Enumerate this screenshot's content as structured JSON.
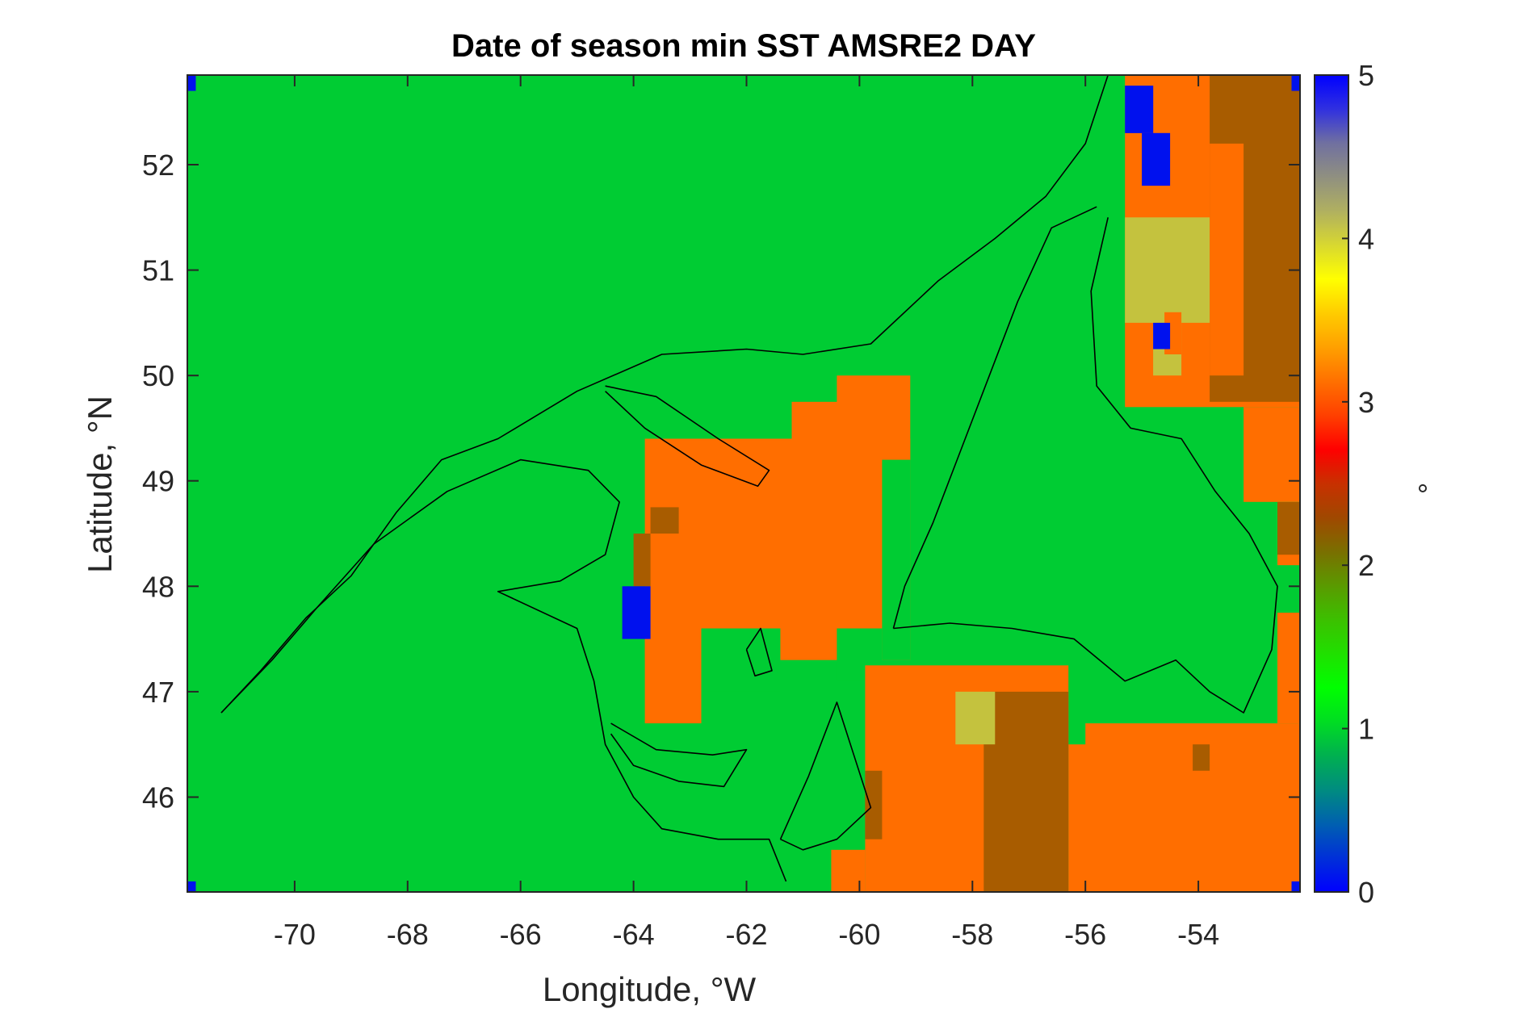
{
  "chart_data": {
    "type": "heatmap",
    "title": "Date of season min SST AMSRE2 DAY",
    "xlabel": "Longitude, °W",
    "ylabel": "Latitude, °N",
    "colorbar_label": "°",
    "xlim": [
      -71.9,
      -52.2
    ],
    "ylim": [
      45.1,
      52.85
    ],
    "xticks": [
      -70,
      -68,
      -66,
      -64,
      -62,
      -60,
      -58,
      -56,
      -54
    ],
    "xtick_labels": [
      "-70",
      "-68",
      "-66",
      "-64",
      "-62",
      "-60",
      "-58",
      "-56",
      "-54"
    ],
    "yticks": [
      46,
      47,
      48,
      49,
      50,
      51,
      52
    ],
    "ytick_labels": [
      "46",
      "47",
      "48",
      "49",
      "50",
      "51",
      "52"
    ],
    "clim": [
      0,
      5
    ],
    "colorbar_ticks": [
      0,
      1,
      2,
      3,
      4,
      5
    ],
    "colorbar_tick_labels": [
      "0",
      "1",
      "2",
      "3",
      "4",
      "5"
    ],
    "background_value": 1,
    "value_colors": {
      "0": "#0011ee",
      "1": "#00cc33",
      "2": "#a85c00",
      "3": "#ff6e00",
      "4": "#c4c23e"
    },
    "colormap": [
      "#0000ff",
      "#0030d8",
      "#0060b0",
      "#008c80",
      "#00b050",
      "#00dd22",
      "#00ff00",
      "#20e000",
      "#3cc000",
      "#5a9a00",
      "#7a6f00",
      "#a04800",
      "#c83000",
      "#ff0000",
      "#ff4000",
      "#ff7000",
      "#ffa000",
      "#ffcc00",
      "#ffff00",
      "#d8d830",
      "#b0b060",
      "#909080",
      "#7070a0",
      "#3030e0",
      "#0000ff"
    ],
    "regions": [
      {
        "value": 3,
        "lon": [
          -63.8,
          -59.1
        ],
        "lat": [
          47.3,
          49.4
        ]
      },
      {
        "value": 3,
        "lon": [
          -60.4,
          -59.1
        ],
        "lat": [
          49.4,
          50.0
        ]
      },
      {
        "value": 3,
        "lon": [
          -61.2,
          -60.4
        ],
        "lat": [
          49.0,
          49.75
        ]
      },
      {
        "value": 3,
        "lon": [
          -62.0,
          -61.2
        ],
        "lat": [
          48.8,
          49.35
        ]
      },
      {
        "value": 3,
        "lon": [
          -63.8,
          -62.8
        ],
        "lat": [
          46.7,
          47.5
        ]
      },
      {
        "value": 1,
        "lon": [
          -62.8,
          -61.4
        ],
        "lat": [
          47.0,
          47.6
        ]
      },
      {
        "value": 1,
        "lon": [
          -60.4,
          -59.6
        ],
        "lat": [
          47.1,
          47.6
        ]
      },
      {
        "value": 1,
        "lon": [
          -59.6,
          -59.1
        ],
        "lat": [
          47.3,
          49.2
        ]
      },
      {
        "value": 2,
        "lon": [
          -63.7,
          -63.2
        ],
        "lat": [
          48.5,
          48.75
        ]
      },
      {
        "value": 2,
        "lon": [
          -64.0,
          -63.7
        ],
        "lat": [
          48.0,
          48.5
        ]
      },
      {
        "value": 0,
        "lon": [
          -64.2,
          -63.7
        ],
        "lat": [
          47.5,
          48.0
        ]
      },
      {
        "value": 3,
        "lon": [
          -59.9,
          -56.3
        ],
        "lat": [
          45.1,
          47.25
        ]
      },
      {
        "value": 3,
        "lon": [
          -56.3,
          -52.2
        ],
        "lat": [
          45.1,
          46.5
        ]
      },
      {
        "value": 3,
        "lon": [
          -56.0,
          -52.2
        ],
        "lat": [
          46.4,
          46.7
        ]
      },
      {
        "value": 3,
        "lon": [
          -52.6,
          -52.2
        ],
        "lat": [
          46.7,
          47.75
        ]
      },
      {
        "value": 3,
        "lon": [
          -60.5,
          -59.9
        ],
        "lat": [
          45.1,
          45.5
        ]
      },
      {
        "value": 2,
        "lon": [
          -57.8,
          -56.3
        ],
        "lat": [
          45.1,
          47.0
        ]
      },
      {
        "value": 2,
        "lon": [
          -59.9,
          -59.6
        ],
        "lat": [
          45.6,
          46.25
        ]
      },
      {
        "value": 2,
        "lon": [
          -54.1,
          -53.8
        ],
        "lat": [
          46.25,
          46.5
        ]
      },
      {
        "value": 4,
        "lon": [
          -58.3,
          -57.6
        ],
        "lat": [
          46.5,
          47.0
        ]
      },
      {
        "value": 3,
        "lon": [
          -55.3,
          -52.2
        ],
        "lat": [
          49.7,
          52.85
        ]
      },
      {
        "value": 3,
        "lon": [
          -53.2,
          -52.2
        ],
        "lat": [
          48.8,
          49.7
        ]
      },
      {
        "value": 3,
        "lon": [
          -52.6,
          -52.2
        ],
        "lat": [
          48.2,
          48.8
        ]
      },
      {
        "value": 2,
        "lon": [
          -53.8,
          -52.2
        ],
        "lat": [
          49.75,
          52.85
        ]
      },
      {
        "value": 2,
        "lon": [
          -52.6,
          -52.2
        ],
        "lat": [
          48.3,
          48.8
        ]
      },
      {
        "value": 3,
        "lon": [
          -53.8,
          -53.2
        ],
        "lat": [
          50.0,
          52.2
        ]
      },
      {
        "value": 4,
        "lon": [
          -55.3,
          -53.8
        ],
        "lat": [
          50.5,
          51.5
        ]
      },
      {
        "value": 4,
        "lon": [
          -54.8,
          -54.3
        ],
        "lat": [
          50.0,
          50.5
        ]
      },
      {
        "value": 3,
        "lon": [
          -54.6,
          -54.3
        ],
        "lat": [
          50.2,
          50.6
        ]
      },
      {
        "value": 0,
        "lon": [
          -55.3,
          -54.8
        ],
        "lat": [
          52.3,
          52.75
        ]
      },
      {
        "value": 0,
        "lon": [
          -55.0,
          -54.5
        ],
        "lat": [
          51.8,
          52.3
        ]
      },
      {
        "value": 0,
        "lon": [
          -54.8,
          -54.5
        ],
        "lat": [
          50.25,
          50.5
        ]
      },
      {
        "value": 0,
        "lon": [
          -71.9,
          -71.75
        ],
        "lat": [
          52.7,
          52.85
        ]
      },
      {
        "value": 0,
        "lon": [
          -52.35,
          -52.2
        ],
        "lat": [
          52.7,
          52.85
        ]
      },
      {
        "value": 0,
        "lon": [
          -71.9,
          -71.75
        ],
        "lat": [
          45.1,
          45.2
        ]
      },
      {
        "value": 0,
        "lon": [
          -52.35,
          -52.2
        ],
        "lat": [
          45.1,
          45.2
        ]
      }
    ],
    "coastlines": [
      {
        "name": "north-shore",
        "points": [
          [
            -71.3,
            46.8
          ],
          [
            -70.6,
            47.2
          ],
          [
            -69.8,
            47.7
          ],
          [
            -69.0,
            48.1
          ],
          [
            -68.2,
            48.7
          ],
          [
            -67.4,
            49.2
          ],
          [
            -66.4,
            49.4
          ],
          [
            -65.0,
            49.85
          ],
          [
            -63.5,
            50.2
          ],
          [
            -62.0,
            50.25
          ],
          [
            -61.0,
            50.2
          ],
          [
            -59.8,
            50.3
          ],
          [
            -58.6,
            50.9
          ],
          [
            -57.6,
            51.3
          ],
          [
            -56.7,
            51.7
          ],
          [
            -56.0,
            52.2
          ],
          [
            -55.6,
            52.85
          ]
        ]
      },
      {
        "name": "gaspe-south-shore",
        "points": [
          [
            -71.3,
            46.8
          ],
          [
            -70.4,
            47.3
          ],
          [
            -69.6,
            47.8
          ],
          [
            -68.6,
            48.4
          ],
          [
            -67.3,
            48.9
          ],
          [
            -66.0,
            49.2
          ],
          [
            -64.8,
            49.1
          ],
          [
            -64.25,
            48.8
          ],
          [
            -64.5,
            48.3
          ],
          [
            -65.3,
            48.05
          ],
          [
            -66.4,
            47.95
          ],
          [
            -65.0,
            47.6
          ],
          [
            -64.7,
            47.1
          ],
          [
            -64.5,
            46.5
          ],
          [
            -64.0,
            46.0
          ],
          [
            -63.5,
            45.7
          ],
          [
            -62.5,
            45.6
          ],
          [
            -61.6,
            45.6
          ],
          [
            -61.3,
            45.2
          ]
        ]
      },
      {
        "name": "newfoundland-west",
        "points": [
          [
            -59.4,
            47.6
          ],
          [
            -59.2,
            48.0
          ],
          [
            -58.7,
            48.6
          ],
          [
            -58.2,
            49.3
          ],
          [
            -57.7,
            50.0
          ],
          [
            -57.2,
            50.7
          ],
          [
            -56.6,
            51.4
          ],
          [
            -55.8,
            51.6
          ]
        ]
      },
      {
        "name": "newfoundland-south",
        "points": [
          [
            -59.4,
            47.6
          ],
          [
            -58.4,
            47.65
          ],
          [
            -57.3,
            47.6
          ],
          [
            -56.2,
            47.5
          ],
          [
            -55.3,
            47.1
          ],
          [
            -54.4,
            47.3
          ],
          [
            -53.8,
            47.0
          ],
          [
            -53.2,
            46.8
          ],
          [
            -52.7,
            47.4
          ],
          [
            -52.6,
            48.0
          ],
          [
            -53.1,
            48.5
          ],
          [
            -53.7,
            48.9
          ],
          [
            -54.3,
            49.4
          ],
          [
            -55.2,
            49.5
          ],
          [
            -55.8,
            49.9
          ],
          [
            -55.9,
            50.8
          ],
          [
            -55.6,
            51.5
          ]
        ]
      },
      {
        "name": "anticosti",
        "points": [
          [
            -64.5,
            49.9
          ],
          [
            -63.6,
            49.8
          ],
          [
            -62.5,
            49.4
          ],
          [
            -61.6,
            49.1
          ],
          [
            -61.8,
            48.95
          ],
          [
            -62.8,
            49.15
          ],
          [
            -63.8,
            49.5
          ],
          [
            -64.5,
            49.85
          ]
        ]
      },
      {
        "name": "pei",
        "points": [
          [
            -64.4,
            46.7
          ],
          [
            -63.6,
            46.45
          ],
          [
            -62.6,
            46.4
          ],
          [
            -62.0,
            46.45
          ],
          [
            -62.4,
            46.1
          ],
          [
            -63.2,
            46.15
          ],
          [
            -64.0,
            46.3
          ],
          [
            -64.4,
            46.6
          ]
        ]
      },
      {
        "name": "cape-breton",
        "points": [
          [
            -61.4,
            45.6
          ],
          [
            -60.9,
            46.2
          ],
          [
            -60.4,
            46.9
          ],
          [
            -60.1,
            46.4
          ],
          [
            -59.8,
            45.9
          ],
          [
            -60.4,
            45.6
          ],
          [
            -61.0,
            45.5
          ],
          [
            -61.4,
            45.6
          ]
        ]
      },
      {
        "name": "magdalen",
        "points": [
          [
            -62.0,
            47.4
          ],
          [
            -61.75,
            47.6
          ],
          [
            -61.55,
            47.2
          ],
          [
            -61.85,
            47.15
          ],
          [
            -62.0,
            47.4
          ]
        ]
      }
    ]
  }
}
